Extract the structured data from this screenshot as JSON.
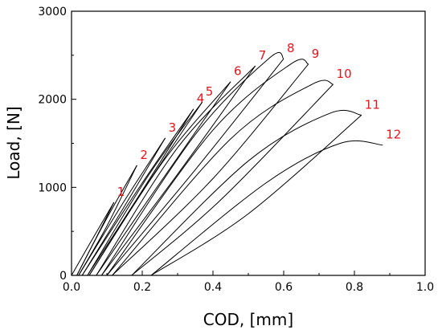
{
  "chart_data": {
    "type": "line",
    "xlabel": "COD, [mm]",
    "ylabel": "Load, [N]",
    "xlim": [
      0.0,
      1.0
    ],
    "ylim": [
      0,
      3000
    ],
    "xticks": [
      0.0,
      0.2,
      0.4,
      0.6,
      0.8,
      1.0
    ],
    "xtick_labels": [
      "0.0",
      "0.2",
      "0.4",
      "0.6",
      "0.8",
      "1.0"
    ],
    "yticks": [
      0,
      1000,
      2000,
      3000
    ],
    "ytick_labels": [
      "0",
      "1000",
      "2000",
      "3000"
    ],
    "grid": false,
    "line_color": "#000000",
    "label_color": "#e8141c",
    "series": [
      {
        "label": "1",
        "loading": [
          [
            0.0,
            0
          ],
          [
            0.05,
            350
          ],
          [
            0.12,
            830
          ]
        ],
        "unloading": [
          [
            0.12,
            830
          ],
          [
            0.07,
            430
          ],
          [
            0.015,
            0
          ]
        ]
      },
      {
        "label": "2",
        "loading": [
          [
            0.015,
            0
          ],
          [
            0.1,
            650
          ],
          [
            0.185,
            1250
          ]
        ],
        "unloading": [
          [
            0.185,
            1250
          ],
          [
            0.1,
            560
          ],
          [
            0.02,
            0
          ]
        ]
      },
      {
        "label": "3",
        "loading": [
          [
            0.02,
            0
          ],
          [
            0.15,
            850
          ],
          [
            0.265,
            1560
          ]
        ],
        "unloading": [
          [
            0.265,
            1560
          ],
          [
            0.14,
            720
          ],
          [
            0.03,
            0
          ]
        ]
      },
      {
        "label": "4",
        "loading": [
          [
            0.03,
            0
          ],
          [
            0.2,
            1050
          ],
          [
            0.345,
            1890
          ]
        ],
        "unloading": [
          [
            0.345,
            1890
          ],
          [
            0.19,
            900
          ],
          [
            0.045,
            0
          ]
        ]
      },
      {
        "label": "5",
        "loading": [
          [
            0.045,
            0
          ],
          [
            0.22,
            1150
          ],
          [
            0.37,
            1970
          ]
        ],
        "unloading": [
          [
            0.37,
            1970
          ],
          [
            0.2,
            950
          ],
          [
            0.05,
            0
          ]
        ]
      },
      {
        "label": "6",
        "loading": [
          [
            0.05,
            0
          ],
          [
            0.26,
            1300
          ],
          [
            0.45,
            2200
          ]
        ],
        "unloading": [
          [
            0.45,
            2200
          ],
          [
            0.25,
            1050
          ],
          [
            0.07,
            0
          ]
        ]
      },
      {
        "label": "7",
        "loading": [
          [
            0.07,
            0
          ],
          [
            0.3,
            1450
          ],
          [
            0.52,
            2380
          ]
        ],
        "unloading": [
          [
            0.52,
            2380
          ],
          [
            0.3,
            1150
          ],
          [
            0.085,
            0
          ]
        ]
      },
      {
        "label": "8",
        "loading": [
          [
            0.085,
            0
          ],
          [
            0.35,
            1600
          ],
          [
            0.56,
            2470
          ],
          [
            0.6,
            2460
          ]
        ],
        "unloading": [
          [
            0.6,
            2460
          ],
          [
            0.35,
            1200
          ],
          [
            0.1,
            0
          ]
        ]
      },
      {
        "label": "9",
        "loading": [
          [
            0.1,
            0
          ],
          [
            0.4,
            1650
          ],
          [
            0.62,
            2400
          ],
          [
            0.67,
            2400
          ]
        ],
        "unloading": [
          [
            0.67,
            2400
          ],
          [
            0.4,
            1100
          ],
          [
            0.115,
            0
          ]
        ]
      },
      {
        "label": "10",
        "loading": [
          [
            0.115,
            0
          ],
          [
            0.45,
            1550
          ],
          [
            0.68,
            2170
          ],
          [
            0.74,
            2170
          ]
        ],
        "unloading": [
          [
            0.74,
            2170
          ],
          [
            0.42,
            850
          ],
          [
            0.17,
            0
          ]
        ]
      },
      {
        "label": "11",
        "loading": [
          [
            0.17,
            0
          ],
          [
            0.5,
            1300
          ],
          [
            0.73,
            1840
          ],
          [
            0.82,
            1820
          ]
        ],
        "unloading": [
          [
            0.82,
            1820
          ],
          [
            0.5,
            700
          ],
          [
            0.225,
            0
          ]
        ]
      },
      {
        "label": "12",
        "loading": [
          [
            0.225,
            0
          ],
          [
            0.55,
            1050
          ],
          [
            0.76,
            1500
          ],
          [
            0.88,
            1480
          ]
        ],
        "unloading": []
      }
    ]
  }
}
